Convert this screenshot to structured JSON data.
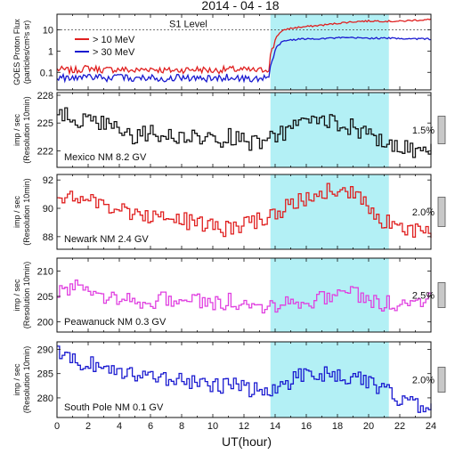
{
  "figure": {
    "title": "2014 - 04 - 18",
    "xlabel": "UT(hour)",
    "x_ticks": [
      "0",
      "2",
      "4",
      "6",
      "8",
      "10",
      "12",
      "14",
      "16",
      "18",
      "20",
      "22",
      "24"
    ],
    "shade_label": "",
    "colors": {
      "shade": "#b3f0f5",
      "red": "#e02020",
      "blue": "#1a1ad0",
      "black": "#111111",
      "magenta": "#e040e0",
      "grey": "#c8c8c8"
    }
  },
  "chart_data": [
    {
      "type": "line",
      "id": "goes",
      "ylabel": "GOES Proton Flux",
      "ylabel2": "(particles/cm²s sr)",
      "yscale": "log",
      "ylim": [
        0.02,
        40
      ],
      "yticks": [
        "0.1",
        "1",
        "10"
      ],
      "xlim": [
        0,
        24
      ],
      "shaded_x": [
        13.7,
        21.3
      ],
      "reference_line": {
        "label": "S1 Level",
        "value": 10
      },
      "legend_position": "top-left",
      "series": [
        {
          "name": "> 10 MeV",
          "color": "#e02020",
          "x": [
            0,
            1,
            2,
            3,
            4,
            5,
            6,
            7,
            8,
            9,
            10,
            11,
            12,
            13,
            13.6,
            13.9,
            14.1,
            14.4,
            14.8,
            15.5,
            16.5,
            17.5,
            18.5,
            19.5,
            20.5,
            21.3,
            22,
            23,
            24
          ],
          "values": [
            0.14,
            0.12,
            0.16,
            0.13,
            0.14,
            0.12,
            0.15,
            0.12,
            0.13,
            0.14,
            0.12,
            0.14,
            0.13,
            0.12,
            0.15,
            1.5,
            5,
            8,
            11,
            13,
            15,
            18,
            22,
            25,
            26,
            25,
            25,
            28,
            30
          ]
        },
        {
          "name": "> 30 MeV",
          "color": "#1a1ad0",
          "x": [
            0,
            1,
            2,
            3,
            4,
            5,
            6,
            7,
            8,
            9,
            10,
            11,
            12,
            13,
            13.6,
            13.9,
            14.1,
            14.4,
            14.8,
            15.5,
            16.5,
            17.5,
            18.5,
            19.5,
            20.5,
            21.3,
            22,
            23,
            24
          ],
          "values": [
            0.06,
            0.05,
            0.07,
            0.05,
            0.06,
            0.05,
            0.06,
            0.05,
            0.06,
            0.05,
            0.05,
            0.06,
            0.05,
            0.05,
            0.06,
            0.5,
            1.5,
            2.5,
            3.2,
            3.6,
            3.8,
            4.0,
            4.2,
            4.1,
            4.0,
            4.0,
            3.9,
            3.8,
            3.7
          ]
        }
      ]
    },
    {
      "type": "line",
      "id": "mexico",
      "ylabel": "imp / sec",
      "ylabel2": "(Resolution 10min)",
      "station": "Mexico NM  8.2 GV",
      "scale_label": "1.5%",
      "ylim": [
        220.5,
        228
      ],
      "yticks": [
        "222",
        "225",
        "228"
      ],
      "xlim": [
        0,
        24
      ],
      "shaded_x": [
        13.7,
        21.3
      ],
      "series": [
        {
          "name": "",
          "color": "#111111",
          "x": [
            0,
            1,
            2,
            3,
            4,
            5,
            6,
            7,
            8,
            9,
            10,
            11,
            12,
            13,
            14,
            15,
            16,
            17,
            18,
            19,
            20,
            21,
            22,
            23,
            24
          ],
          "values": [
            226,
            225.5,
            225,
            225,
            224,
            223.5,
            224,
            223.5,
            223.5,
            223.5,
            223,
            223.5,
            223,
            222.8,
            223.5,
            224.5,
            225,
            225.5,
            225,
            224.5,
            223.5,
            223,
            222.5,
            222,
            222
          ]
        }
      ]
    },
    {
      "type": "line",
      "id": "newark",
      "ylabel": "imp / sec",
      "ylabel2": "(Resolution 10min)",
      "station": "Newark NM 2.4 GV",
      "scale_label": "2.0%",
      "ylim": [
        87.3,
        92.2
      ],
      "yticks": [
        "88",
        "90",
        "92"
      ],
      "xlim": [
        0,
        24
      ],
      "shaded_x": [
        13.7,
        21.3
      ],
      "series": [
        {
          "name": "",
          "color": "#e02020",
          "x": [
            0,
            1,
            2,
            3,
            4,
            5,
            6,
            7,
            8,
            9,
            10,
            11,
            12,
            13,
            14,
            15,
            16,
            17,
            18,
            19,
            20,
            21,
            22,
            23,
            24
          ],
          "values": [
            91,
            90.8,
            90.5,
            90.2,
            90,
            89.5,
            89.5,
            89.5,
            89.2,
            88.8,
            88.8,
            88.5,
            88.8,
            89.2,
            89.8,
            90.2,
            90.8,
            91.2,
            91.5,
            91,
            90.2,
            89,
            88.6,
            88.5,
            88.3
          ]
        }
      ]
    },
    {
      "type": "line",
      "id": "peawanuck",
      "ylabel": "imp / sec",
      "ylabel2": "(Resolution 10min)",
      "station": "Peawanuck NM 0.3 GV",
      "scale_label": "2.5%",
      "ylim": [
        198.5,
        212
      ],
      "yticks": [
        "200",
        "205",
        "210"
      ],
      "xlim": [
        0,
        24
      ],
      "shaded_x": [
        13.7,
        21.3
      ],
      "series": [
        {
          "name": "",
          "color": "#e040e0",
          "x": [
            0,
            1,
            2,
            3,
            4,
            5,
            6,
            7,
            8,
            9,
            10,
            11,
            12,
            13,
            14,
            15,
            16,
            17,
            18,
            19,
            20,
            21,
            22,
            23,
            24
          ],
          "values": [
            206,
            207,
            206,
            205,
            205,
            204,
            204,
            204.5,
            204,
            204,
            203.5,
            204,
            203.5,
            203,
            203.5,
            204,
            204,
            204.5,
            206,
            205.5,
            204,
            203.5,
            203.5,
            204,
            205
          ]
        }
      ]
    },
    {
      "type": "line",
      "id": "southpole",
      "ylabel": "imp / sec",
      "ylabel2": "(Resolution 10min)",
      "station": "South Pole NM 0.1 GV",
      "scale_label": "2.0%",
      "ylim": [
        276.5,
        291
      ],
      "yticks": [
        "280",
        "285",
        "290"
      ],
      "xlim": [
        0,
        24
      ],
      "shaded_x": [
        13.7,
        21.3
      ],
      "series": [
        {
          "name": "",
          "color": "#1a1ad0",
          "x": [
            0,
            1,
            2,
            3,
            4,
            5,
            6,
            7,
            8,
            9,
            10,
            11,
            12,
            13,
            14,
            15,
            16,
            17,
            18,
            19,
            20,
            21,
            22,
            23,
            24
          ],
          "values": [
            289,
            288,
            287,
            286.5,
            285.5,
            285,
            284.5,
            284,
            283.5,
            283,
            282.5,
            282.5,
            282,
            281.5,
            282,
            283.5,
            285,
            285,
            284.5,
            284,
            283,
            282,
            279,
            278.5,
            278
          ]
        }
      ]
    }
  ]
}
